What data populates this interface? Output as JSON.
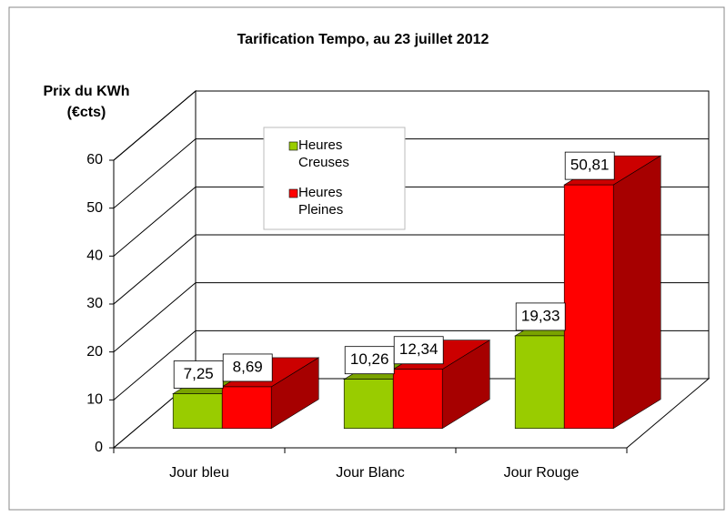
{
  "chart_data": {
    "type": "bar3d",
    "title": "Tarification Tempo, au 23 juillet 2012",
    "y_label": [
      "Prix du KWh",
      "(€cts)"
    ],
    "categories": [
      "Jour bleu",
      "Jour Blanc",
      "Jour Rouge"
    ],
    "series": [
      {
        "name": "Heures Creuses",
        "color": "#99cc00",
        "values": [
          7.25,
          10.26,
          19.33
        ],
        "value_labels": [
          "7,25",
          "10,26",
          "19,33"
        ]
      },
      {
        "name": "Heures Pleines",
        "color": "#ff0000",
        "values": [
          8.69,
          12.34,
          50.81
        ],
        "value_labels": [
          "8,69",
          "12,34",
          "50,81"
        ]
      }
    ],
    "ylim": [
      0,
      60
    ],
    "yticks": [
      0,
      10,
      20,
      30,
      40,
      50,
      60
    ],
    "grid": true,
    "legend": "inside"
  }
}
